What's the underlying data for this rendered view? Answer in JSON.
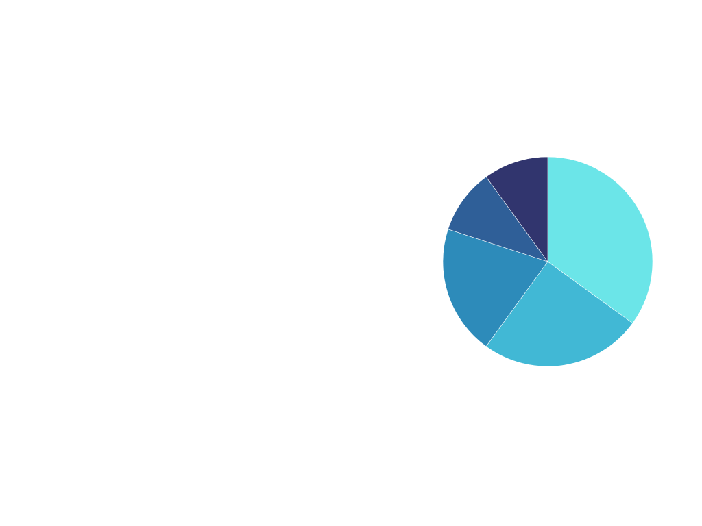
{
  "chart_data": {
    "type": "pie",
    "start_angle_deg": 0,
    "direction": "clockwise",
    "slices": [
      {
        "value": 35,
        "color": "#6BE5E8"
      },
      {
        "value": 25,
        "color": "#41B8D5"
      },
      {
        "value": 20,
        "color": "#2D8BBA"
      },
      {
        "value": 10,
        "color": "#2F5F98"
      },
      {
        "value": 10,
        "color": "#31356E"
      }
    ]
  }
}
